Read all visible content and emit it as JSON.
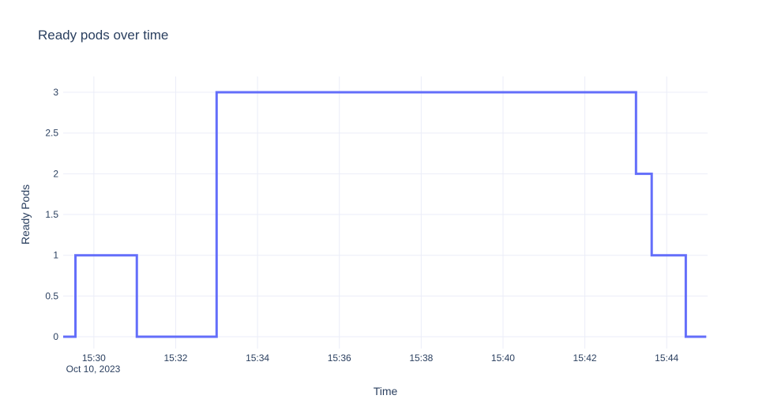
{
  "chart_data": {
    "type": "line",
    "line_shape": "hv",
    "title": "Ready pods over time",
    "xlabel": "Time",
    "ylabel": "Ready Pods",
    "x_date_label": "Oct 10, 2023",
    "x": [
      "15:29:15",
      "15:29:33",
      "15:31:03",
      "15:33:00",
      "15:43:15",
      "15:43:38",
      "15:44:28",
      "15:44:58"
    ],
    "y": [
      0,
      1,
      0,
      3,
      2,
      1,
      0,
      0
    ],
    "x_ticks": [
      "15:30",
      "15:32",
      "15:34",
      "15:36",
      "15:38",
      "15:40",
      "15:42",
      "15:44"
    ],
    "y_ticks": [
      "0",
      "0.5",
      "1",
      "1.5",
      "2",
      "2.5",
      "3"
    ],
    "x_range": [
      "15:29:15",
      "15:45:00"
    ],
    "y_range": [
      -0.145,
      3.194
    ],
    "grid": true,
    "legend_position": "none",
    "colors": {
      "line": "#636efa",
      "grid": "#ebedf8",
      "font": "#2a3f5f",
      "background": "#ffffff"
    }
  }
}
